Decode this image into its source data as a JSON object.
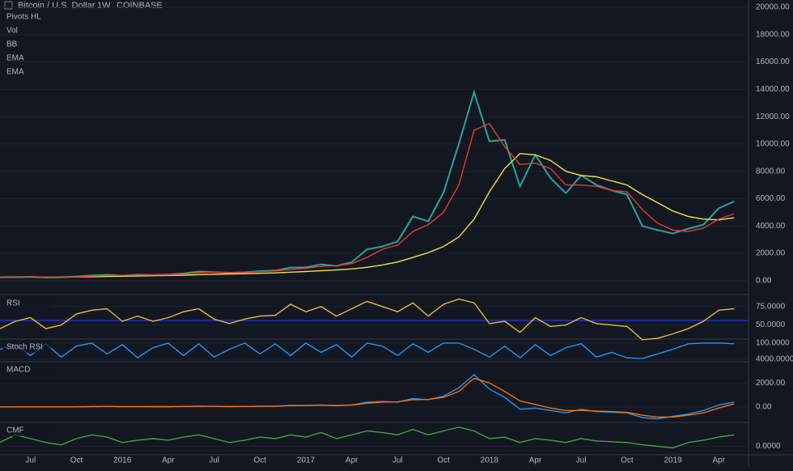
{
  "chart_data": [
    {
      "type": "line",
      "title": "Bitcoin / U.S. Dollar",
      "interval": "1W",
      "exchange": "COINBASE",
      "indicators": [
        "Pivots HL",
        "Vol",
        "BB",
        "EMA",
        "EMA"
      ],
      "categories": [
        null,
        null,
        "Jul",
        null,
        null,
        "Oct",
        null,
        null,
        "2016",
        null,
        null,
        "Apr",
        null,
        null,
        "Jul",
        null,
        null,
        "Oct",
        null,
        null,
        "2017",
        null,
        null,
        "Apr",
        null,
        null,
        "Jul",
        null,
        null,
        "Oct",
        null,
        null,
        "2018",
        null,
        null,
        "Apr",
        null,
        null,
        "Jul",
        null,
        null,
        "Oct",
        null,
        null,
        "2019",
        null,
        null,
        "Apr",
        null
      ],
      "ylim": [
        -900,
        20240
      ],
      "yticks": [
        {
          "value": 0,
          "label": "0.00"
        },
        {
          "value": 2000,
          "label": "2000.00"
        },
        {
          "value": 4000,
          "label": "4000.00"
        },
        {
          "value": 6000,
          "label": "6000.00"
        },
        {
          "value": 8000,
          "label": "8000.00"
        },
        {
          "value": 10000,
          "label": "10000.00"
        },
        {
          "value": 12000,
          "label": "12000.00"
        },
        {
          "value": 14000,
          "label": "14000.00"
        },
        {
          "value": 16000,
          "label": "16000.00"
        },
        {
          "value": 18000,
          "label": "18000.00"
        },
        {
          "value": 20000,
          "label": "20000.00"
        }
      ],
      "grid": true,
      "series": [
        {
          "color": "#26a69a",
          "values": [
            240,
            260,
            285,
            230,
            236,
            310,
            380,
            430,
            370,
            440,
            415,
            450,
            530,
            670,
            620,
            575,
            610,
            700,
            740,
            960,
            970,
            1190,
            1080,
            1350,
            2300,
            2500,
            2870,
            4700,
            4340,
            6450,
            10000,
            13800,
            10200,
            10300,
            6900,
            9200,
            7500,
            6400,
            7700,
            7000,
            6600,
            6300,
            4000,
            3700,
            3450,
            3800,
            4100,
            5300,
            5800
          ]
        },
        {
          "color": "#f5e13c",
          "values": [
            250,
            252,
            258,
            260,
            258,
            265,
            285,
            310,
            325,
            345,
            360,
            380,
            400,
            440,
            470,
            490,
            510,
            540,
            570,
            620,
            670,
            720,
            780,
            860,
            980,
            1150,
            1370,
            1700,
            2050,
            2500,
            3200,
            4500,
            6500,
            8200,
            9300,
            9200,
            8800,
            8000,
            7700,
            7600,
            7300,
            7000,
            6300,
            5700,
            5100,
            4700,
            4500,
            4450,
            4600
          ]
        },
        {
          "color": "#e53935",
          "values": [
            245,
            255,
            270,
            265,
            245,
            270,
            330,
            390,
            390,
            410,
            420,
            435,
            480,
            580,
            620,
            600,
            610,
            660,
            710,
            820,
            900,
            1050,
            1100,
            1250,
            1700,
            2300,
            2600,
            3600,
            4100,
            5000,
            7000,
            11000,
            11500,
            9800,
            8500,
            8600,
            8200,
            7000,
            7000,
            6900,
            6600,
            6500,
            5200,
            4200,
            3700,
            3600,
            3850,
            4500,
            4900
          ]
        }
      ]
    },
    {
      "type": "line",
      "title": "RSI",
      "ylim": [
        32,
        89
      ],
      "yticks": [
        {
          "value": 50,
          "label": "50.0000"
        },
        {
          "value": 75,
          "label": "75.0000"
        }
      ],
      "levels": [
        56
      ],
      "level_color": "#2132c4",
      "series": [
        {
          "color": "#e8b93a",
          "values": [
            45,
            55,
            60,
            45,
            50,
            65,
            70,
            72,
            55,
            62,
            55,
            60,
            68,
            72,
            58,
            52,
            58,
            62,
            63,
            78,
            68,
            75,
            62,
            72,
            82,
            75,
            68,
            80,
            62,
            78,
            85,
            80,
            52,
            55,
            40,
            60,
            48,
            50,
            60,
            52,
            50,
            48,
            30,
            32,
            38,
            45,
            55,
            70,
            72
          ]
        }
      ]
    },
    {
      "type": "line",
      "title": "Stoch RSI",
      "ylim": [
        -15,
        120
      ],
      "yticks": [
        {
          "value": 100,
          "label": "100.0000"
        }
      ],
      "series": [
        {
          "color": "#2196f3",
          "values": [
            60,
            90,
            20,
            95,
            10,
            80,
            100,
            30,
            90,
            5,
            70,
            100,
            20,
            95,
            10,
            60,
            100,
            30,
            95,
            20,
            100,
            40,
            90,
            10,
            100,
            80,
            20,
            95,
            40,
            100,
            100,
            60,
            10,
            80,
            5,
            90,
            20,
            70,
            95,
            10,
            40,
            5,
            0,
            30,
            60,
            95,
            100,
            100,
            95
          ]
        }
      ]
    },
    {
      "type": "line",
      "title": "MACD",
      "ylim": [
        -1240,
        3720
      ],
      "yticks": [
        {
          "value": 0,
          "label": "0.00"
        },
        {
          "value": 2000,
          "label": "2000.00"
        },
        {
          "value": 4000,
          "label": "4000.0000"
        }
      ],
      "series": [
        {
          "color": "#2196f3",
          "values": [
            0,
            0,
            5,
            0,
            -5,
            10,
            30,
            40,
            20,
            25,
            15,
            20,
            40,
            60,
            40,
            20,
            30,
            50,
            60,
            120,
            110,
            150,
            100,
            160,
            400,
            450,
            400,
            700,
            600,
            900,
            1600,
            2700,
            1500,
            800,
            -200,
            -100,
            -300,
            -500,
            -200,
            -400,
            -450,
            -500,
            -900,
            -1000,
            -800,
            -600,
            -300,
            150,
            400
          ]
        },
        {
          "color": "#ff6d00",
          "values": [
            0,
            0,
            3,
            2,
            0,
            5,
            20,
            30,
            25,
            25,
            20,
            20,
            30,
            50,
            45,
            30,
            30,
            45,
            55,
            100,
            110,
            140,
            120,
            150,
            300,
            400,
            420,
            600,
            620,
            800,
            1300,
            2400,
            2000,
            1300,
            500,
            200,
            -100,
            -300,
            -300,
            -350,
            -400,
            -450,
            -700,
            -850,
            -850,
            -700,
            -500,
            -100,
            250
          ]
        }
      ]
    },
    {
      "type": "line",
      "title": "CMF",
      "ylim": [
        -0.1,
        0.3
      ],
      "yticks": [
        {
          "value": 0,
          "label": "0.0000"
        }
      ],
      "series": [
        {
          "color": "#43a047",
          "values": [
            0.05,
            0.15,
            0.1,
            0.05,
            0.02,
            0.1,
            0.15,
            0.12,
            0.05,
            0.08,
            0.1,
            0.08,
            0.12,
            0.15,
            0.1,
            0.05,
            0.08,
            0.12,
            0.1,
            0.15,
            0.12,
            0.18,
            0.1,
            0.15,
            0.2,
            0.18,
            0.15,
            0.22,
            0.15,
            0.2,
            0.25,
            0.2,
            0.1,
            0.12,
            0.05,
            0.1,
            0.08,
            0.05,
            0.1,
            0.07,
            0.06,
            0.05,
            0.02,
            0.0,
            -0.02,
            0.05,
            0.08,
            0.12,
            0.15
          ]
        }
      ]
    }
  ]
}
